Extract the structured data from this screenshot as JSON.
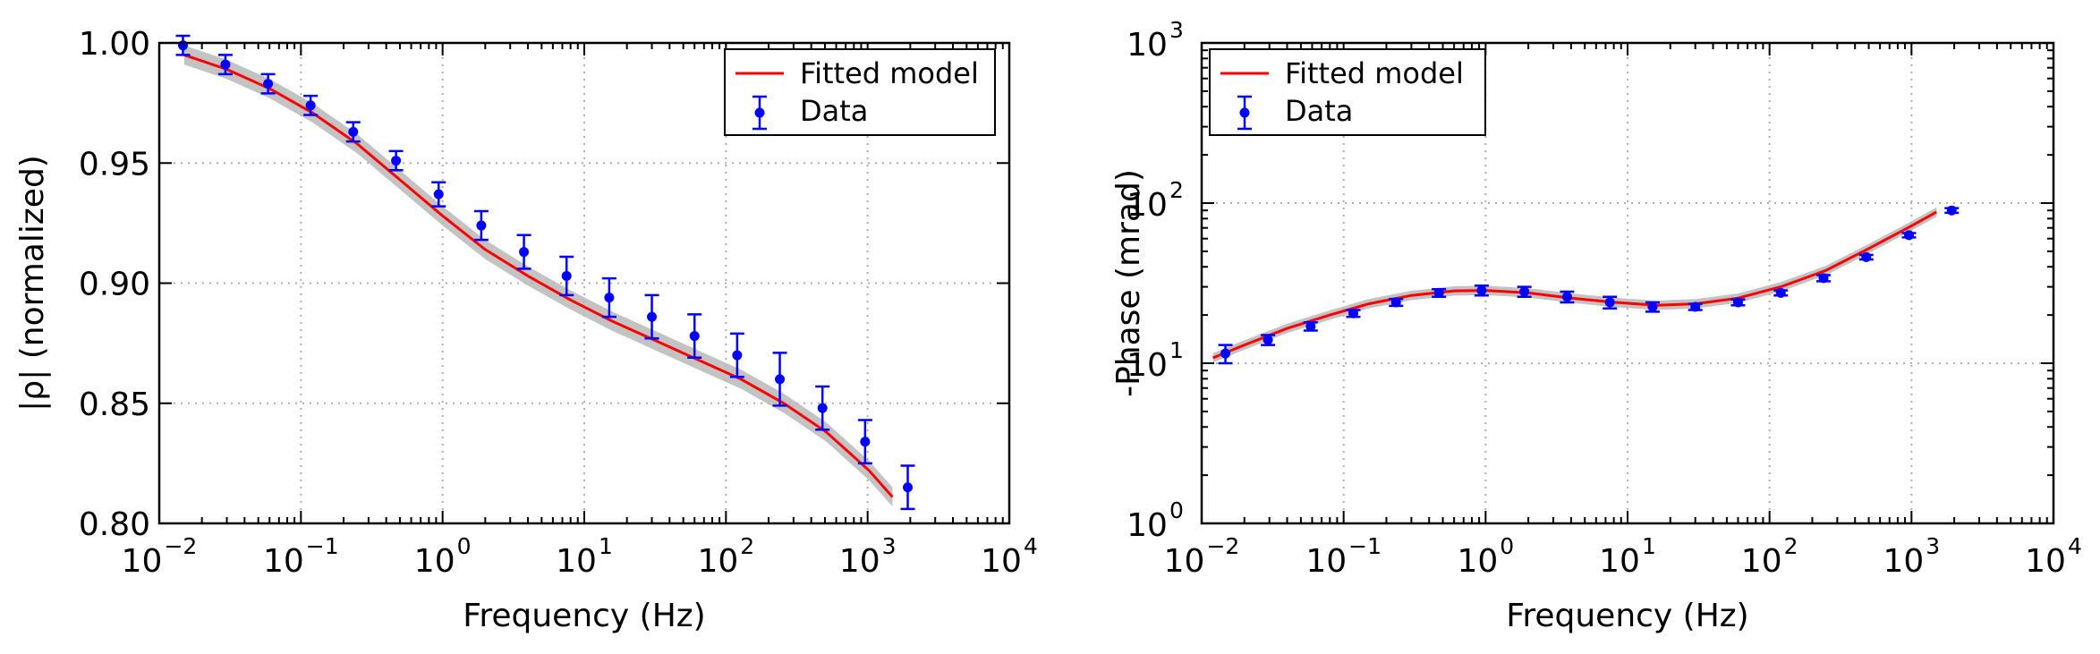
{
  "colors": {
    "model": "#ff0000",
    "data": "#0000ff",
    "band": "#b8b8b8"
  },
  "chart_data": [
    {
      "type": "line",
      "xlabel": "Frequency (Hz)",
      "ylabel": "|ρ| (normalized)",
      "xscale": "log",
      "yscale": "linear",
      "xlim": [
        0.01,
        10000
      ],
      "ylim": [
        0.8,
        1.0
      ],
      "x_ticks": [
        "10^-2",
        "10^-1",
        "10^0",
        "10^1",
        "10^2",
        "10^3",
        "10^4"
      ],
      "y_ticks": [
        "0.80",
        "0.85",
        "0.90",
        "0.95",
        "1.00"
      ],
      "grid": true,
      "legend": {
        "placement": "top-right",
        "entries": [
          "Fitted model",
          "Data"
        ]
      },
      "series": [
        {
          "name": "Fitted model",
          "kind": "line",
          "x": [
            0.015,
            0.03,
            0.06,
            0.12,
            0.25,
            0.5,
            1,
            2,
            4,
            8,
            16,
            32,
            64,
            128,
            256,
            512,
            1024,
            1500
          ],
          "y": [
            0.995,
            0.989,
            0.981,
            0.971,
            0.958,
            0.943,
            0.928,
            0.914,
            0.903,
            0.893,
            0.884,
            0.876,
            0.868,
            0.86,
            0.85,
            0.838,
            0.822,
            0.811
          ]
        },
        {
          "name": "Data",
          "kind": "errorbar",
          "x": [
            0.0147,
            0.0293,
            0.0586,
            0.117,
            0.234,
            0.469,
            0.9375,
            1.875,
            3.75,
            7.5,
            15,
            30,
            60,
            120,
            240,
            480,
            960,
            1920
          ],
          "y": [
            0.999,
            0.991,
            0.983,
            0.974,
            0.963,
            0.951,
            0.937,
            0.924,
            0.913,
            0.903,
            0.894,
            0.886,
            0.878,
            0.87,
            0.86,
            0.848,
            0.834,
            0.815
          ],
          "yerr": [
            0.004,
            0.004,
            0.004,
            0.004,
            0.004,
            0.004,
            0.005,
            0.006,
            0.007,
            0.008,
            0.008,
            0.009,
            0.009,
            0.009,
            0.011,
            0.009,
            0.009,
            0.009
          ]
        }
      ]
    },
    {
      "type": "line",
      "xlabel": "Frequency (Hz)",
      "ylabel": "-Phase (mrad)",
      "xscale": "log",
      "yscale": "log",
      "xlim": [
        0.01,
        10000
      ],
      "ylim": [
        1,
        1000
      ],
      "x_ticks": [
        "10^-2",
        "10^-1",
        "10^0",
        "10^1",
        "10^2",
        "10^3",
        "10^4"
      ],
      "y_ticks": [
        "10^0",
        "10^1",
        "10^2",
        "10^3"
      ],
      "grid": true,
      "legend": {
        "placement": "top-left",
        "entries": [
          "Fitted model",
          "Data"
        ]
      },
      "series": [
        {
          "name": "Fitted model",
          "kind": "line",
          "x": [
            0.012,
            0.02,
            0.04,
            0.08,
            0.15,
            0.3,
            0.6,
            1,
            2,
            4,
            8,
            16,
            30,
            60,
            120,
            250,
            500,
            1000,
            1500
          ],
          "y": [
            10.8,
            13.0,
            16.5,
            20.0,
            23.5,
            26.5,
            28.3,
            28.5,
            27.5,
            25.5,
            24.0,
            23.0,
            23.5,
            25.5,
            30.0,
            38.0,
            52.0,
            72.0,
            88.0
          ]
        },
        {
          "name": "Data",
          "kind": "errorbar",
          "x": [
            0.0147,
            0.0293,
            0.0586,
            0.117,
            0.234,
            0.469,
            0.9375,
            1.875,
            3.75,
            7.5,
            15,
            30,
            60,
            120,
            240,
            480,
            960,
            1920
          ],
          "y": [
            11.5,
            14.0,
            17.0,
            20.5,
            24.0,
            27.5,
            28.5,
            28.0,
            26.0,
            24.0,
            22.5,
            22.5,
            24.0,
            27.5,
            34.0,
            46.0,
            63.0,
            90.0
          ],
          "yerr": [
            1.5,
            1.0,
            1.0,
            1.0,
            1.2,
            1.5,
            2.0,
            2.0,
            2.0,
            2.0,
            1.5,
            1.0,
            1.0,
            1.0,
            1.5,
            1.5,
            2.0,
            3.0
          ]
        }
      ]
    }
  ]
}
